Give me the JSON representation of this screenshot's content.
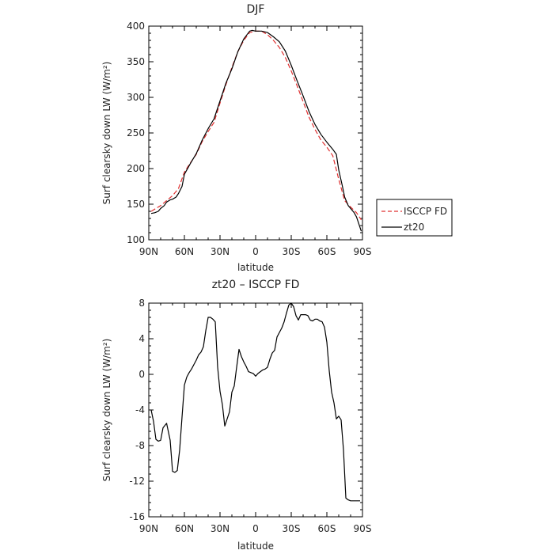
{
  "chart_data": [
    {
      "type": "line",
      "title": "DJF",
      "xlabel": "latitude",
      "ylabel": "Surf clearsky down LW (W/m²)",
      "xlim": [
        90,
        -90
      ],
      "ylim": [
        100,
        400
      ],
      "xticks": [
        90,
        60,
        30,
        0,
        -30,
        -60,
        -90
      ],
      "xtick_labels": [
        "90N",
        "60N",
        "30N",
        "0",
        "30S",
        "60S",
        "90S"
      ],
      "yticks": [
        100,
        150,
        200,
        250,
        300,
        350,
        400
      ],
      "ytick_labels": [
        "100",
        "150",
        "200",
        "250",
        "300",
        "350",
        "400"
      ],
      "legend_position": "right",
      "series": [
        {
          "name": "ISCCP FD",
          "color": "#e03030",
          "dash": "dashed",
          "x": [
            88,
            85,
            80,
            75,
            70,
            65,
            60,
            55,
            50,
            45,
            40,
            35,
            30,
            25,
            20,
            15,
            10,
            5,
            0,
            -5,
            -10,
            -15,
            -20,
            -25,
            -30,
            -35,
            -40,
            -45,
            -50,
            -55,
            -60,
            -65,
            -70,
            -75,
            -80,
            -85,
            -89
          ],
          "y": [
            140,
            143,
            148,
            155,
            162,
            172,
            195,
            208,
            220,
            238,
            252,
            265,
            292,
            318,
            342,
            364,
            380,
            391,
            393,
            393,
            388,
            380,
            370,
            356,
            337,
            316,
            294,
            272,
            255,
            240,
            230,
            218,
            185,
            155,
            146,
            138,
            128
          ]
        },
        {
          "name": "zt20",
          "color": "#000000",
          "dash": "solid",
          "x": [
            88,
            85,
            82,
            80,
            77,
            75,
            72,
            70,
            67,
            65,
            62,
            60,
            55,
            50,
            45,
            40,
            35,
            30,
            25,
            20,
            15,
            10,
            5,
            3,
            0,
            -5,
            -10,
            -15,
            -20,
            -25,
            -30,
            -35,
            -40,
            -45,
            -50,
            -55,
            -60,
            -65,
            -68,
            -70,
            -73,
            -75,
            -78,
            -80,
            -83,
            -85,
            -89
          ],
          "y": [
            137,
            138,
            140,
            144,
            148,
            153,
            156,
            157,
            160,
            165,
            175,
            192,
            207,
            221,
            240,
            256,
            270,
            295,
            320,
            340,
            364,
            382,
            393,
            394,
            393,
            393,
            391,
            385,
            378,
            365,
            345,
            323,
            302,
            280,
            262,
            248,
            237,
            227,
            220,
            198,
            176,
            160,
            148,
            144,
            138,
            132,
            112
          ]
        }
      ]
    },
    {
      "type": "line",
      "title": "zt20 – ISCCP FD",
      "xlabel": "latitude",
      "ylabel": "Surf clearsky down LW (W/m²)",
      "xlim": [
        90,
        -90
      ],
      "ylim": [
        -16,
        8
      ],
      "xticks": [
        90,
        60,
        30,
        0,
        -30,
        -60,
        -90
      ],
      "xtick_labels": [
        "90N",
        "60N",
        "30N",
        "0",
        "30S",
        "60S",
        "90S"
      ],
      "yticks": [
        -16,
        -12,
        -8,
        -4,
        0,
        4,
        8
      ],
      "ytick_labels": [
        "-16",
        "-12",
        "-8",
        "-4",
        "0",
        "4",
        "8"
      ],
      "series": [
        {
          "color": "#000000",
          "x": [
            88,
            86,
            84,
            82,
            80,
            78,
            75,
            72,
            70,
            68,
            66,
            64,
            62,
            60,
            58,
            56,
            54,
            52,
            50,
            48,
            46,
            44,
            42,
            40,
            38,
            36,
            34,
            32,
            30,
            28,
            26,
            24,
            22,
            20,
            18,
            16,
            14,
            12,
            10,
            8,
            6,
            4,
            2,
            0,
            -2,
            -4,
            -6,
            -8,
            -10,
            -12,
            -14,
            -16,
            -18,
            -20,
            -22,
            -24,
            -26,
            -28,
            -30,
            -32,
            -34,
            -36,
            -38,
            -40,
            -42,
            -44,
            -46,
            -48,
            -50,
            -52,
            -54,
            -56,
            -58,
            -60,
            -62,
            -64,
            -66,
            -68,
            -70,
            -72,
            -74,
            -76,
            -78,
            -80,
            -82,
            -84,
            -86,
            -88
          ],
          "y": [
            -4.0,
            -5.3,
            -7.3,
            -7.5,
            -7.4,
            -6.0,
            -5.5,
            -7.4,
            -10.9,
            -11.0,
            -10.8,
            -8.5,
            -4.8,
            -1.2,
            -0.3,
            0.2,
            0.6,
            1.1,
            1.6,
            2.2,
            2.5,
            3.1,
            4.9,
            6.4,
            6.4,
            6.2,
            5.9,
            0.8,
            -1.9,
            -3.4,
            -5.8,
            -5.0,
            -4.2,
            -2.0,
            -1.3,
            0.8,
            2.8,
            2.0,
            1.4,
            0.9,
            0.3,
            0.2,
            0.1,
            -0.2,
            0.1,
            0.3,
            0.5,
            0.6,
            0.8,
            1.7,
            2.4,
            2.7,
            4.2,
            4.7,
            5.2,
            5.9,
            6.9,
            7.8,
            8.0,
            7.6,
            6.6,
            6.1,
            6.7,
            6.7,
            6.7,
            6.6,
            6.1,
            6.0,
            6.2,
            6.2,
            6.0,
            5.9,
            5.3,
            3.6,
            0.4,
            -2.0,
            -3.2,
            -5.0,
            -4.7,
            -5.1,
            -8.5,
            -13.9,
            -14.1,
            -14.2,
            -14.2,
            -14.2,
            -14.2,
            -14.2
          ]
        }
      ]
    }
  ]
}
